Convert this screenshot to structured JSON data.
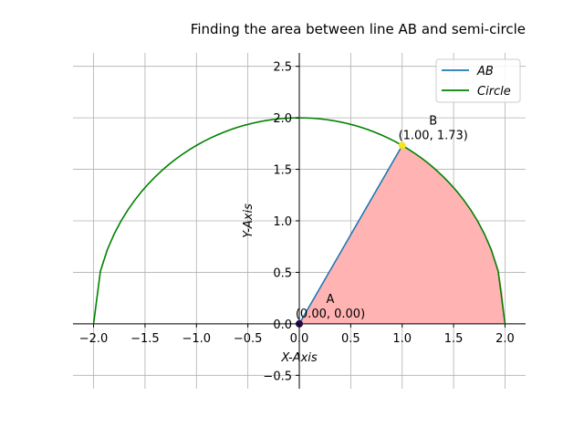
{
  "chart_data": {
    "type": "line",
    "title": "Finding the area between line AB and semi-circle",
    "xlabel": "X-Axis",
    "ylabel": "Y-Axis",
    "xlim": [
      -2.2,
      2.2
    ],
    "ylim": [
      -0.63,
      2.63
    ],
    "grid": true,
    "legend_position": "top-right",
    "x_ticks": [
      -2.0,
      -1.5,
      -1.0,
      -0.5,
      0.0,
      0.5,
      1.0,
      1.5,
      2.0
    ],
    "x_tick_labels": [
      "−2.0",
      "−1.5",
      "−1.0",
      "−0.5",
      "0.0",
      "0.5",
      "1.0",
      "1.5",
      "2.0"
    ],
    "y_ticks": [
      -0.5,
      0.0,
      0.5,
      1.0,
      1.5,
      2.0,
      2.5
    ],
    "y_tick_labels": [
      "−0.5",
      "0.0",
      "0.5",
      "1.0",
      "1.5",
      "2.0",
      "2.5"
    ],
    "series": [
      {
        "name": "AB",
        "color": "#1f77b4",
        "x": [
          0.0,
          1.0
        ],
        "y": [
          0.0,
          1.73
        ]
      },
      {
        "name": "Circle",
        "color": "#008000",
        "radius": 2.0,
        "x_range": [
          -2.0,
          2.0
        ]
      }
    ],
    "shaded_region": {
      "color": "#ffb3b3",
      "between": "AB and Circle",
      "x_range": [
        0.0,
        2.0
      ]
    },
    "points": [
      {
        "label": "A",
        "coords": "(0.00, 0.00)",
        "x": 0.0,
        "y": 0.0,
        "color": "#2c0a4a"
      },
      {
        "label": "B",
        "coords": "(1.00, 1.73)",
        "x": 1.0,
        "y": 1.73,
        "color": "#f5e31c"
      }
    ]
  }
}
